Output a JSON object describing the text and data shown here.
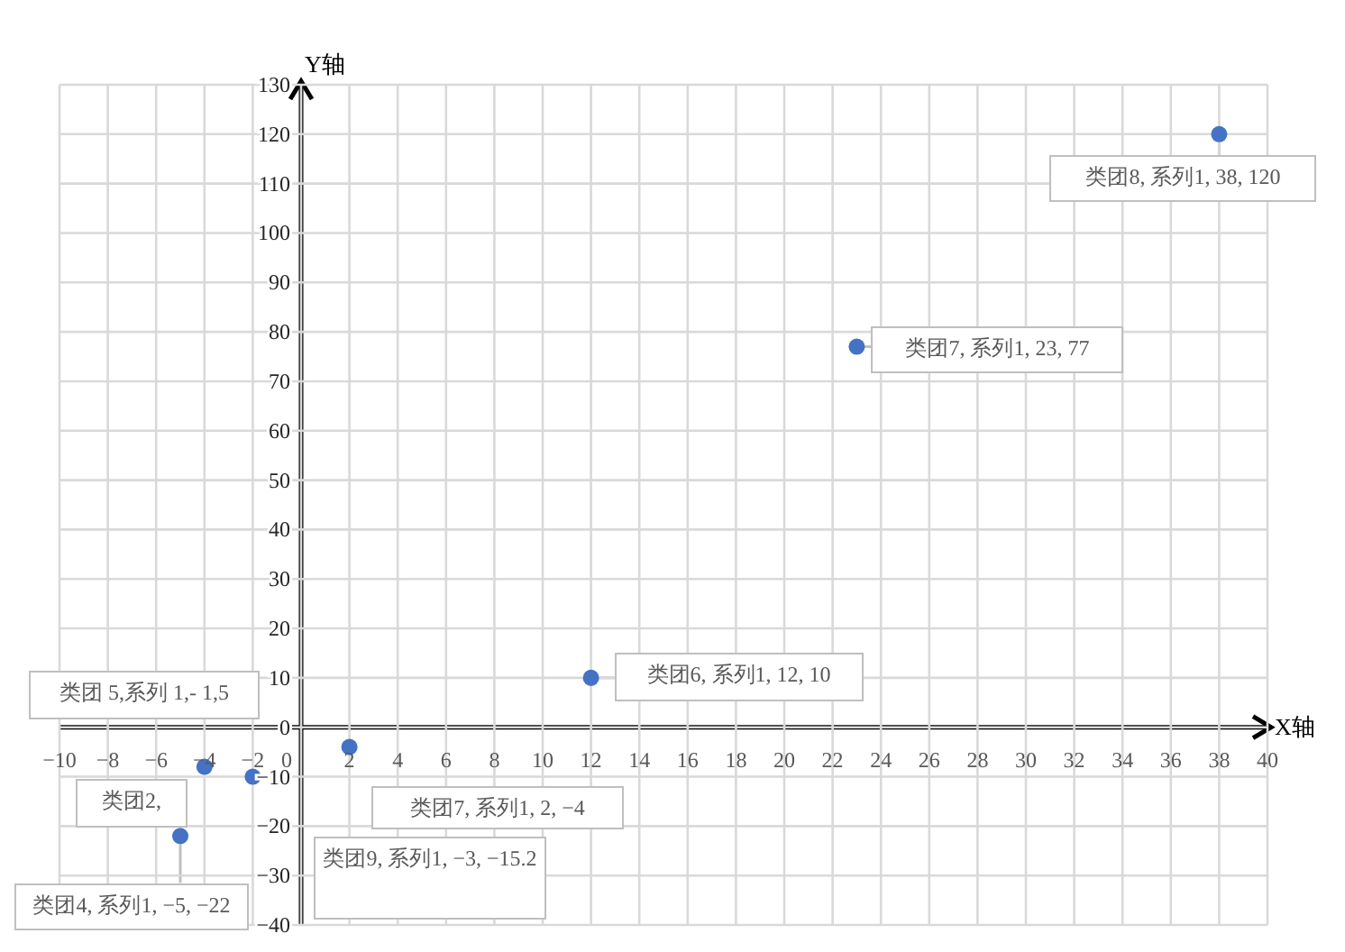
{
  "chart_data": {
    "type": "scatter",
    "xlabel": "X轴",
    "ylabel": "Y轴",
    "series": [
      {
        "color": "#4472c4",
        "x": [
          -4,
          -2,
          -5,
          2,
          12,
          23,
          38
        ],
        "values": [
          -8,
          -10,
          -22,
          -4,
          10,
          77,
          120
        ]
      }
    ],
    "xlim": [
      -10,
      40
    ],
    "xticks": [
      -10,
      -8,
      -6,
      -4,
      -2,
      0,
      2,
      4,
      6,
      8,
      10,
      12,
      14,
      16,
      18,
      20,
      22,
      24,
      26,
      28,
      30,
      32,
      34,
      36,
      38,
      40
    ],
    "ylim": [
      -40,
      130
    ],
    "yticks": [
      -40,
      -30,
      -20,
      -10,
      0,
      10,
      20,
      30,
      40,
      50,
      60,
      70,
      80,
      90,
      100,
      110,
      120,
      130
    ],
    "grid": true,
    "marker": "circle",
    "annotations": [
      {
        "text": "类团8, 系列1, 38, 120",
        "x": 38,
        "y": 120
      },
      {
        "text": "类团7, 系列1, 23, 77",
        "x": 23,
        "y": 77
      },
      {
        "text": "类团6, 系列1, 12, 10",
        "x": 12,
        "y": 10
      },
      "类团 5,系列 1,- 1,5",
      {
        "text": "类团4, 系列1, −5, −22",
        "x": -5,
        "y": -22
      },
      "类团2,",
      "类团7, 系列1, 2, −4",
      "类团9, 系列1, −3, −15.2"
    ]
  }
}
